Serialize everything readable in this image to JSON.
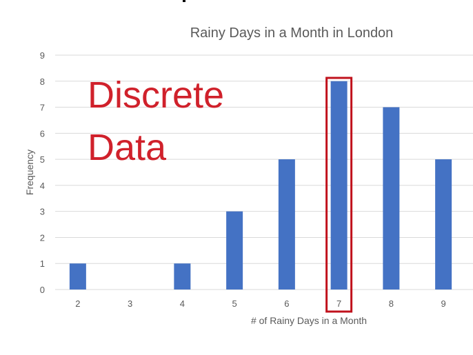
{
  "chart_data": {
    "type": "bar",
    "title": "Rainy Days in a Month in London",
    "xlabel": "# of Rainy Days in a Month",
    "ylabel": "Frequency",
    "categories": [
      "2",
      "3",
      "4",
      "5",
      "6",
      "7",
      "8",
      "9"
    ],
    "values": [
      1,
      0,
      1,
      3,
      5,
      8,
      7,
      5
    ],
    "ylim": [
      0,
      9
    ],
    "yticks": [
      "0",
      "1",
      "2",
      "3",
      "4",
      "5",
      "6",
      "7",
      "8",
      "9"
    ],
    "grid": true,
    "bar_color": "#4472c4",
    "highlight_category": "7",
    "highlight_color": "#c0121c"
  },
  "annotation": {
    "line1": "Discrete",
    "line2": "Data",
    "color": "#d0212b"
  }
}
